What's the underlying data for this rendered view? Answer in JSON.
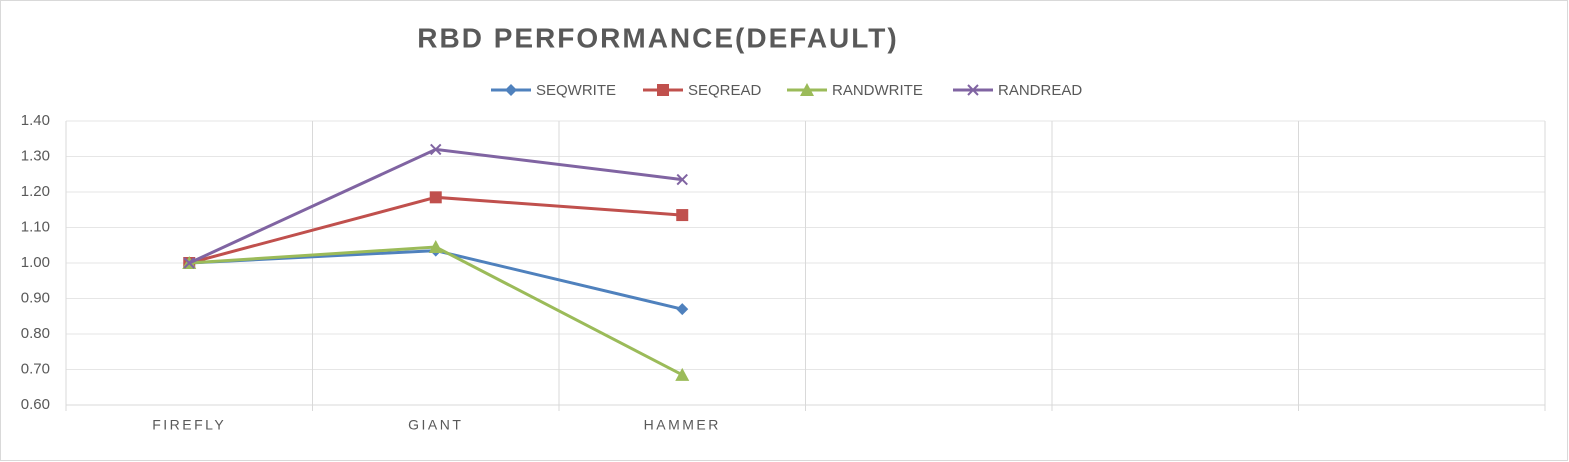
{
  "chart_data": {
    "type": "line",
    "title": "RBD PERFORMANCE(DEFAULT)",
    "categories": [
      "FIREFLY",
      "GIANT",
      "HAMMER",
      null,
      null,
      null
    ],
    "series": [
      {
        "name": "SEQWRITE",
        "color": "#4f81bd",
        "marker": "diamond",
        "values": [
          1.0,
          1.035,
          0.87,
          null,
          null,
          null
        ]
      },
      {
        "name": "SEQREAD",
        "color": "#c0504d",
        "marker": "square",
        "values": [
          1.0,
          1.185,
          1.135,
          null,
          null,
          null
        ]
      },
      {
        "name": "RANDWRITE",
        "color": "#9bbb59",
        "marker": "triangle",
        "values": [
          1.0,
          1.045,
          0.685,
          null,
          null,
          null
        ]
      },
      {
        "name": "RANDREAD",
        "color": "#8064a2",
        "marker": "x",
        "values": [
          1.0,
          1.32,
          1.235,
          null,
          null,
          null
        ]
      }
    ],
    "ylim": [
      0.6,
      1.4
    ],
    "yticks": [
      {
        "value": 0.6,
        "label": "0.60"
      },
      {
        "value": 0.7,
        "label": "0.70"
      },
      {
        "value": 0.8,
        "label": "0.80"
      },
      {
        "value": 0.9,
        "label": "0.90"
      },
      {
        "value": 1.0,
        "label": "1.00"
      },
      {
        "value": 1.1,
        "label": "1.10"
      },
      {
        "value": 1.2,
        "label": "1.20"
      },
      {
        "value": 1.3,
        "label": "1.30"
      },
      {
        "value": 1.4,
        "label": "1.40"
      }
    ],
    "grid": true,
    "legend": "top"
  }
}
